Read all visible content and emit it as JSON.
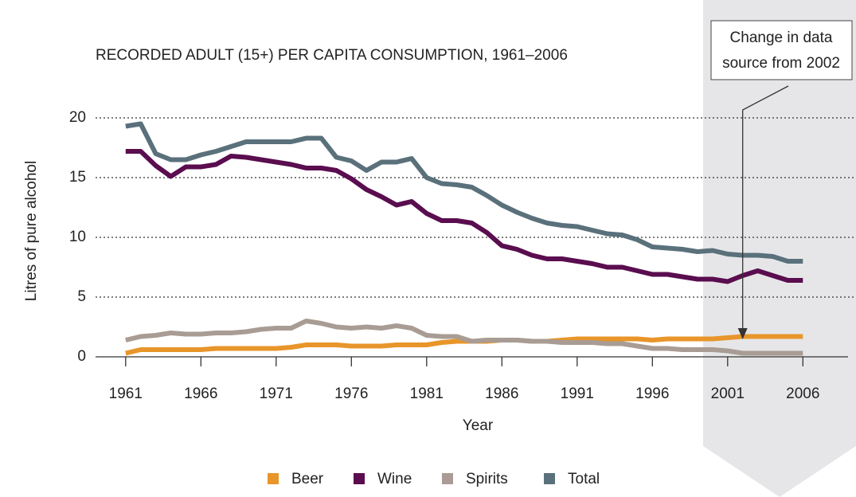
{
  "chart_data": {
    "type": "line",
    "title": "RECORDED ADULT (15+) PER CAPITA CONSUMPTION, 1961–2006",
    "xlabel": "Year",
    "ylabel": "Litres of pure alcohol",
    "annotation": [
      "Change in data",
      "source from 2002"
    ],
    "annotation_x": 2002,
    "x": [
      1961,
      1962,
      1963,
      1964,
      1965,
      1966,
      1967,
      1968,
      1969,
      1970,
      1971,
      1972,
      1973,
      1974,
      1975,
      1976,
      1977,
      1978,
      1979,
      1980,
      1981,
      1982,
      1983,
      1984,
      1985,
      1986,
      1987,
      1988,
      1989,
      1990,
      1991,
      1992,
      1993,
      1994,
      1995,
      1996,
      1997,
      1998,
      1999,
      2000,
      2001,
      2002,
      2003,
      2004,
      2005,
      2006
    ],
    "series": [
      {
        "name": "Beer",
        "color": "#e8952a",
        "values": [
          0.3,
          0.6,
          0.6,
          0.6,
          0.6,
          0.6,
          0.7,
          0.7,
          0.7,
          0.7,
          0.7,
          0.8,
          1.0,
          1.0,
          1.0,
          0.9,
          0.9,
          0.9,
          1.0,
          1.0,
          1.0,
          1.2,
          1.3,
          1.3,
          1.3,
          1.4,
          1.4,
          1.3,
          1.3,
          1.4,
          1.5,
          1.5,
          1.5,
          1.5,
          1.5,
          1.4,
          1.5,
          1.5,
          1.5,
          1.5,
          1.6,
          1.7,
          1.7,
          1.7,
          1.7,
          1.7
        ]
      },
      {
        "name": "Wine",
        "color": "#5a0d4f",
        "values": [
          17.2,
          17.2,
          16.0,
          15.1,
          15.9,
          15.9,
          16.1,
          16.8,
          16.7,
          16.5,
          16.3,
          16.1,
          15.8,
          15.8,
          15.6,
          14.9,
          14.0,
          13.4,
          12.7,
          13.0,
          12.0,
          11.4,
          11.4,
          11.2,
          10.4,
          9.3,
          9.0,
          8.5,
          8.2,
          8.2,
          8.0,
          7.8,
          7.5,
          7.5,
          7.2,
          6.9,
          6.9,
          6.7,
          6.5,
          6.5,
          6.3,
          6.8,
          7.2,
          6.8,
          6.4,
          6.4
        ]
      },
      {
        "name": "Spirits",
        "color": "#a89c94",
        "values": [
          1.4,
          1.7,
          1.8,
          2.0,
          1.9,
          1.9,
          2.0,
          2.0,
          2.1,
          2.3,
          2.4,
          2.4,
          3.0,
          2.8,
          2.5,
          2.4,
          2.5,
          2.4,
          2.6,
          2.4,
          1.8,
          1.7,
          1.7,
          1.3,
          1.4,
          1.4,
          1.4,
          1.3,
          1.3,
          1.2,
          1.2,
          1.2,
          1.1,
          1.1,
          0.9,
          0.7,
          0.7,
          0.6,
          0.6,
          0.6,
          0.5,
          0.3,
          0.3,
          0.3,
          0.3,
          0.3
        ]
      },
      {
        "name": "Total",
        "color": "#5a717c",
        "values": [
          19.3,
          19.5,
          17.0,
          16.5,
          16.5,
          16.9,
          17.2,
          17.6,
          18.0,
          18.0,
          18.0,
          18.0,
          18.3,
          18.3,
          16.7,
          16.4,
          15.6,
          16.3,
          16.3,
          16.6,
          15.0,
          14.5,
          14.4,
          14.2,
          13.5,
          12.7,
          12.1,
          11.6,
          11.2,
          11.0,
          10.9,
          10.6,
          10.3,
          10.2,
          9.8,
          9.2,
          9.1,
          9.0,
          8.8,
          8.9,
          8.6,
          8.5,
          8.5,
          8.4,
          8.0,
          8.0
        ]
      }
    ],
    "xlim": [
      1959,
      2009
    ],
    "xticks": [
      1961,
      1966,
      1971,
      1976,
      1981,
      1986,
      1991,
      1996,
      2001,
      2006
    ],
    "ylim": [
      0,
      20
    ],
    "yticks": [
      0,
      5,
      10,
      15,
      20
    ],
    "grid": true
  }
}
